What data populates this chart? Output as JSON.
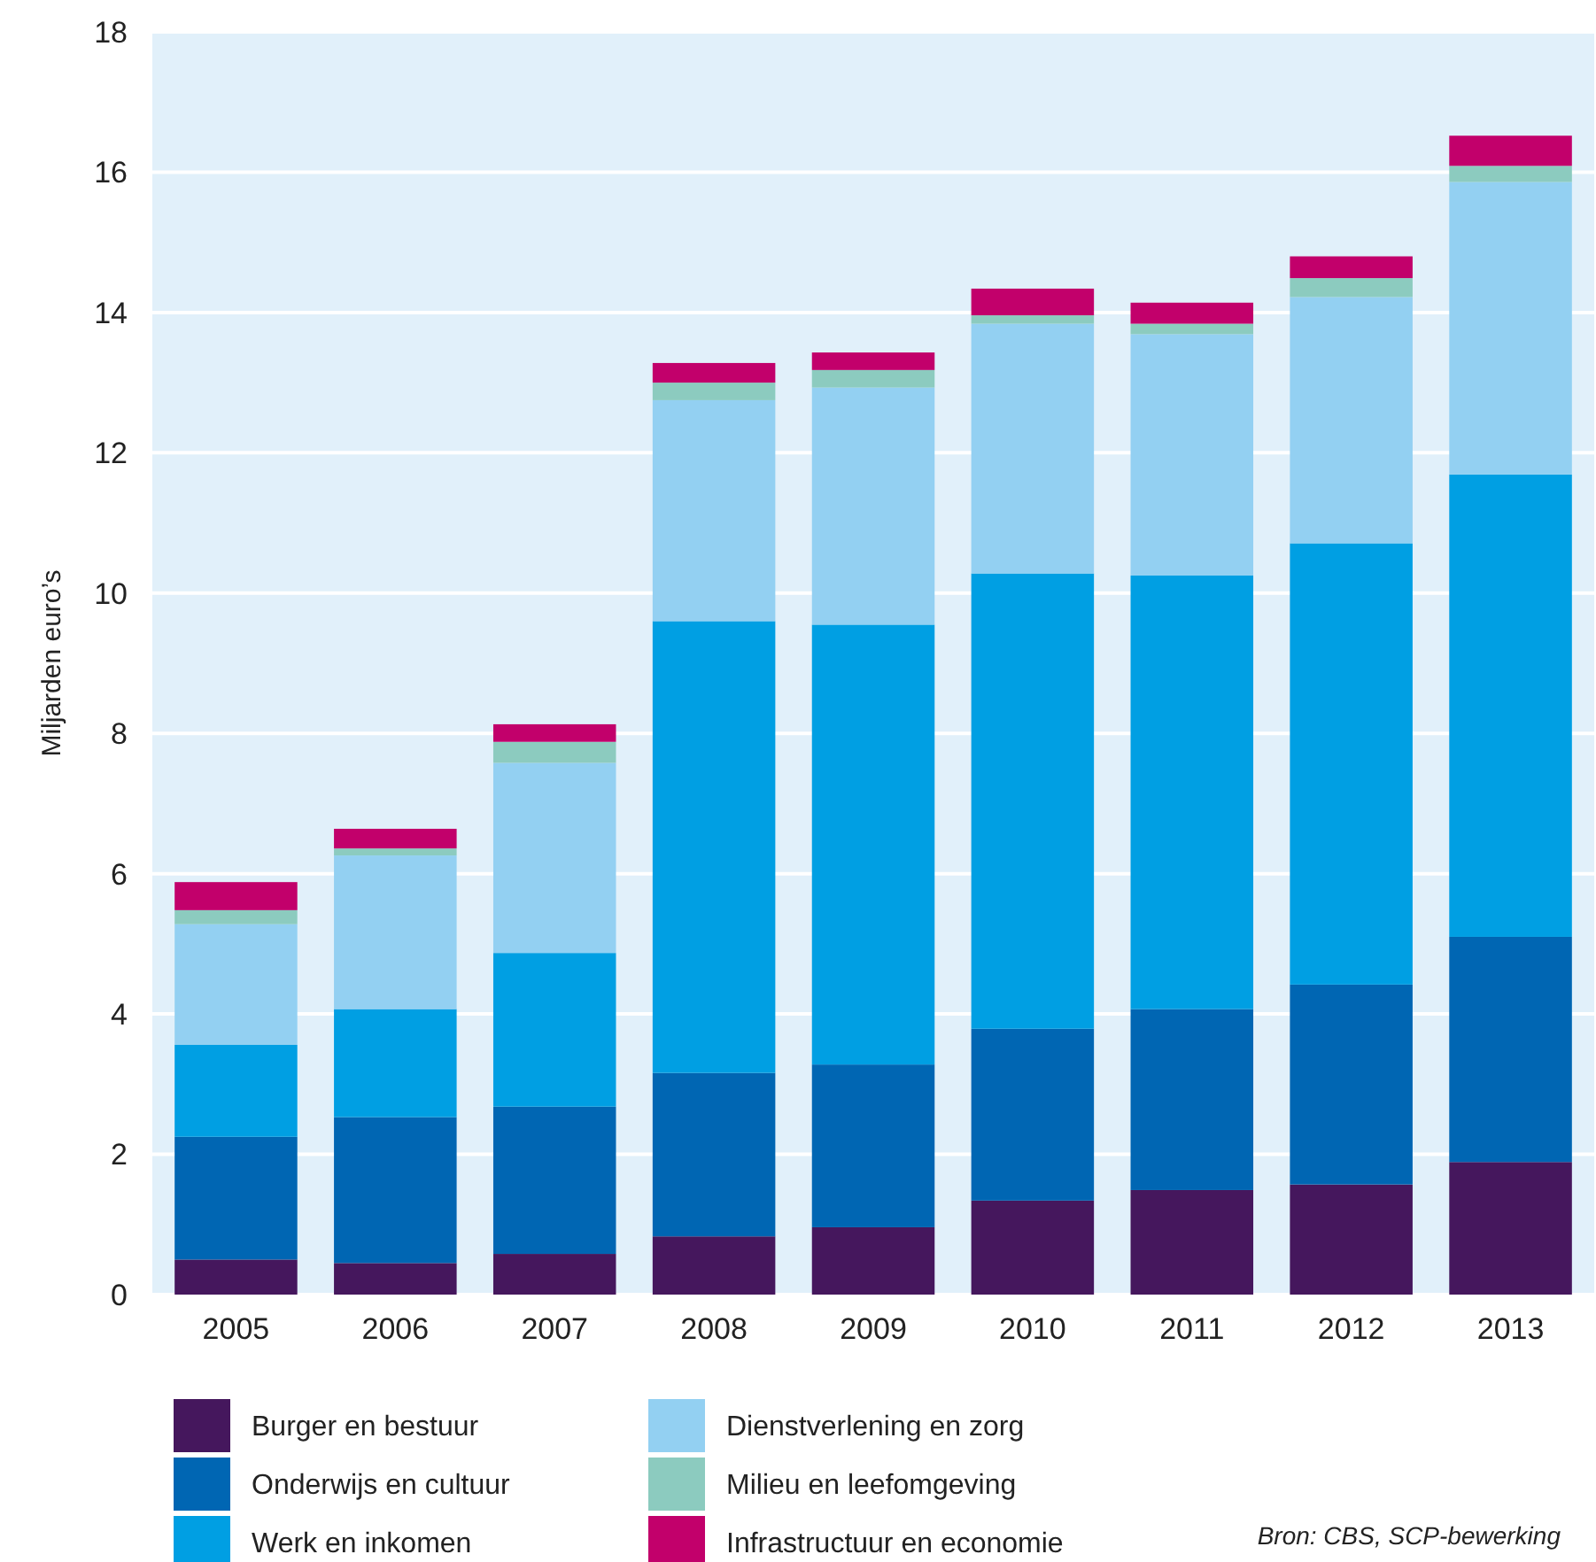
{
  "chart_data": {
    "type": "bar",
    "stacked": true,
    "ylabel": "Miljarden euro’s",
    "categories": [
      "2005",
      "2006",
      "2007",
      "2008",
      "2009",
      "2010",
      "2011",
      "2012",
      "2013"
    ],
    "series": [
      {
        "name": "Burger en bestuur",
        "color": "#45175d",
        "values": [
          0.5,
          0.45,
          0.58,
          0.83,
          0.96,
          1.34,
          1.49,
          1.57,
          1.89
        ]
      },
      {
        "name": "Onderwijs en cultuur",
        "color": "#0066b3",
        "values": [
          1.75,
          2.08,
          2.1,
          2.33,
          2.32,
          2.45,
          2.58,
          2.85,
          3.21
        ]
      },
      {
        "name": "Werk en inkomen",
        "color": "#009fe3",
        "values": [
          1.31,
          1.54,
          2.19,
          6.44,
          6.27,
          6.49,
          6.18,
          6.29,
          6.59
        ]
      },
      {
        "name": "Dienstverlening en zorg",
        "color": "#93d0f2",
        "values": [
          1.72,
          2.19,
          2.71,
          3.15,
          3.38,
          3.56,
          3.44,
          3.51,
          4.17
        ]
      },
      {
        "name": "Milieu en leefomgeving",
        "color": "#8ccbbf",
        "values": [
          0.2,
          0.1,
          0.3,
          0.25,
          0.25,
          0.12,
          0.15,
          0.27,
          0.23
        ]
      },
      {
        "name": "Infrastructuur en economie",
        "color": "#c2006b",
        "values": [
          0.4,
          0.28,
          0.25,
          0.28,
          0.25,
          0.38,
          0.3,
          0.31,
          0.43
        ]
      }
    ],
    "ylim": [
      0,
      18
    ],
    "yticks": [
      0,
      2,
      4,
      6,
      8,
      10,
      12,
      14,
      16,
      18
    ],
    "grid": "y",
    "legend": "bottom",
    "annotations": [
      "Bron: CBS, SCP-bewerking"
    ]
  }
}
